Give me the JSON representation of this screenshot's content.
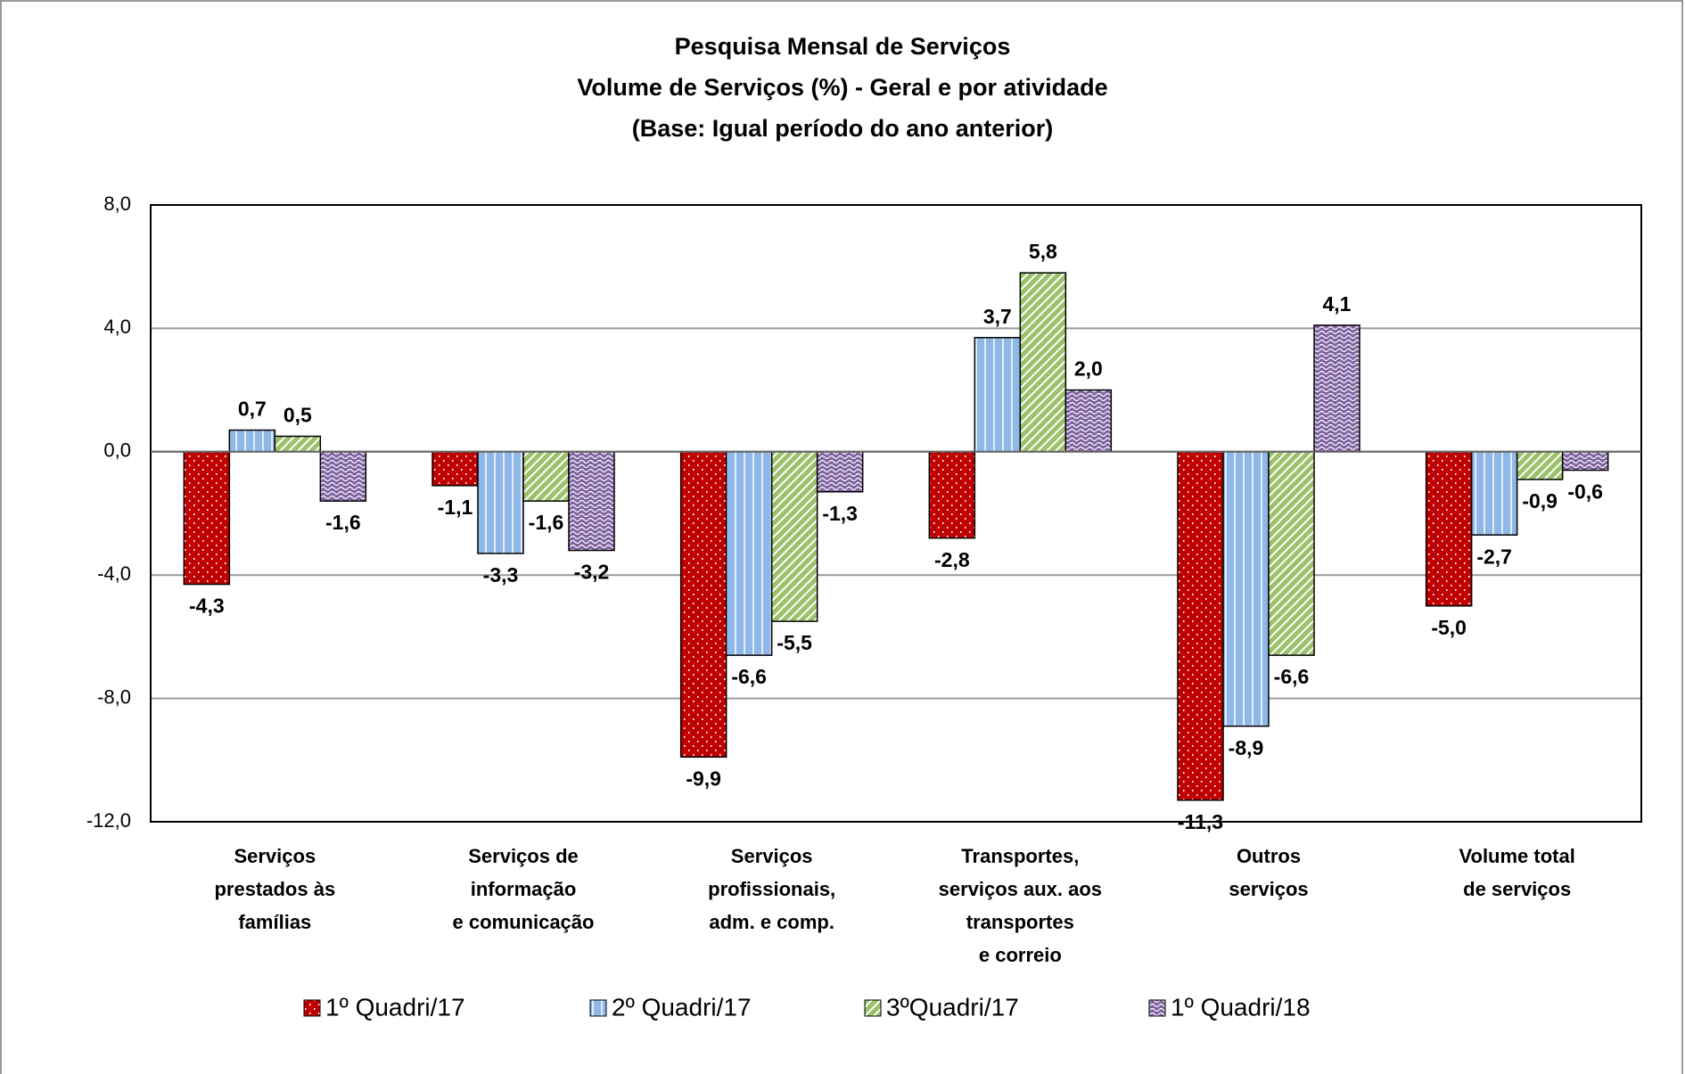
{
  "chart_data": {
    "type": "bar",
    "title": [
      "Pesquisa Mensal de Serviços",
      "Volume de Serviços (%) - Geral e por atividade",
      "(Base: Igual período do ano anterior)"
    ],
    "categories": [
      [
        "Serviços",
        "prestados às",
        "famílias"
      ],
      [
        "Serviços de",
        "informação",
        "e comunicação"
      ],
      [
        "Serviços",
        "profissionais,",
        "adm. e comp."
      ],
      [
        "Transportes,",
        "serviços aux. aos",
        "transportes",
        "e correio"
      ],
      [
        "Outros",
        "serviços"
      ],
      [
        "Volume total",
        "de serviços"
      ]
    ],
    "series": [
      {
        "name": "1º Quadri/17",
        "color": "#c00000",
        "values": [
          -4.3,
          -1.1,
          -9.9,
          -2.8,
          -11.3,
          -5.0
        ],
        "value_labels": [
          "-4,3",
          "-1,1",
          "-9,9",
          "-2,8",
          "-11,3",
          "-5,0"
        ]
      },
      {
        "name": "2º Quadri/17",
        "color": "#8fb8e8",
        "values": [
          0.7,
          -3.3,
          -6.6,
          3.7,
          -8.9,
          -2.7
        ],
        "value_labels": [
          "0,7",
          "-3,3",
          "-6,6",
          "3,7",
          "-8,9",
          "-2,7"
        ]
      },
      {
        "name": "3ºQuadri/17",
        "color": "#9bc26a",
        "values": [
          0.5,
          -1.6,
          -5.5,
          5.8,
          -6.6,
          -0.9
        ],
        "value_labels": [
          "0,5",
          "-1,6",
          "-5,5",
          "5,8",
          "-6,6",
          "-0,9"
        ]
      },
      {
        "name": "1º Quadri/18",
        "color": "#8064a2",
        "values": [
          -1.6,
          -3.2,
          -1.3,
          2.0,
          4.1,
          -0.6
        ],
        "value_labels": [
          "-1,6",
          "-3,2",
          "-1,3",
          "2,0",
          "4,1",
          "-0,6"
        ]
      }
    ],
    "ylim": [
      -12,
      8
    ],
    "yticks": [
      {
        "value": -12,
        "label": "-12,0"
      },
      {
        "value": -8,
        "label": "-8,0"
      },
      {
        "value": -4,
        "label": "-4,0"
      },
      {
        "value": 0,
        "label": "0,0"
      },
      {
        "value": 4,
        "label": "4,0"
      },
      {
        "value": 8,
        "label": "8,0"
      }
    ],
    "grid": true,
    "legend": "bottom"
  }
}
